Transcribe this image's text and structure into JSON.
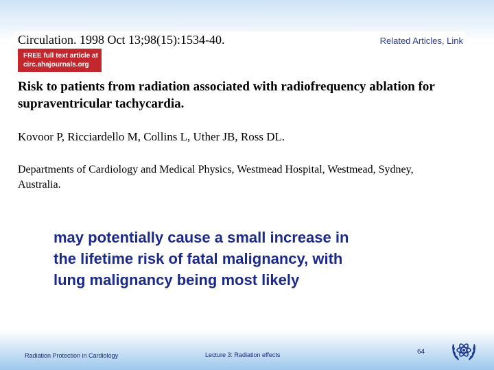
{
  "abstract": {
    "citation": "Circulation. 1998 Oct 13;98(15):1534-40.",
    "related_link": "Related Articles, Link",
    "free_badge": {
      "line1": "FREE full text article at",
      "line2": "circ.ahajournals.org"
    },
    "title": "Risk to patients from radiation associated with radiofrequency ablation for supraventricular tachycardia.",
    "authors": "Kovoor P, Ricciardello M, Collins L, Uther JB, Ross DL.",
    "affiliation": "Departments of Cardiology and Medical Physics, Westmead Hospital, Westmead, Sydney, Australia."
  },
  "quote": {
    "line1": "may potentially cause a small increase in",
    "line2": "the lifetime risk of fatal malignancy, with",
    "line3": "lung malignancy being most likely"
  },
  "footer": {
    "left": "Radiation Protection in Cardiology",
    "center": "Lecture 3: Radiation effects",
    "page_number": "64",
    "logo_icon": "iaea-atom-olive-wreath-icon"
  },
  "colors": {
    "quote_text": "#1b2a8a",
    "badge_bg": "#c1272d",
    "footer_text": "#1a2a6c",
    "logo": "#1f3c8f"
  }
}
